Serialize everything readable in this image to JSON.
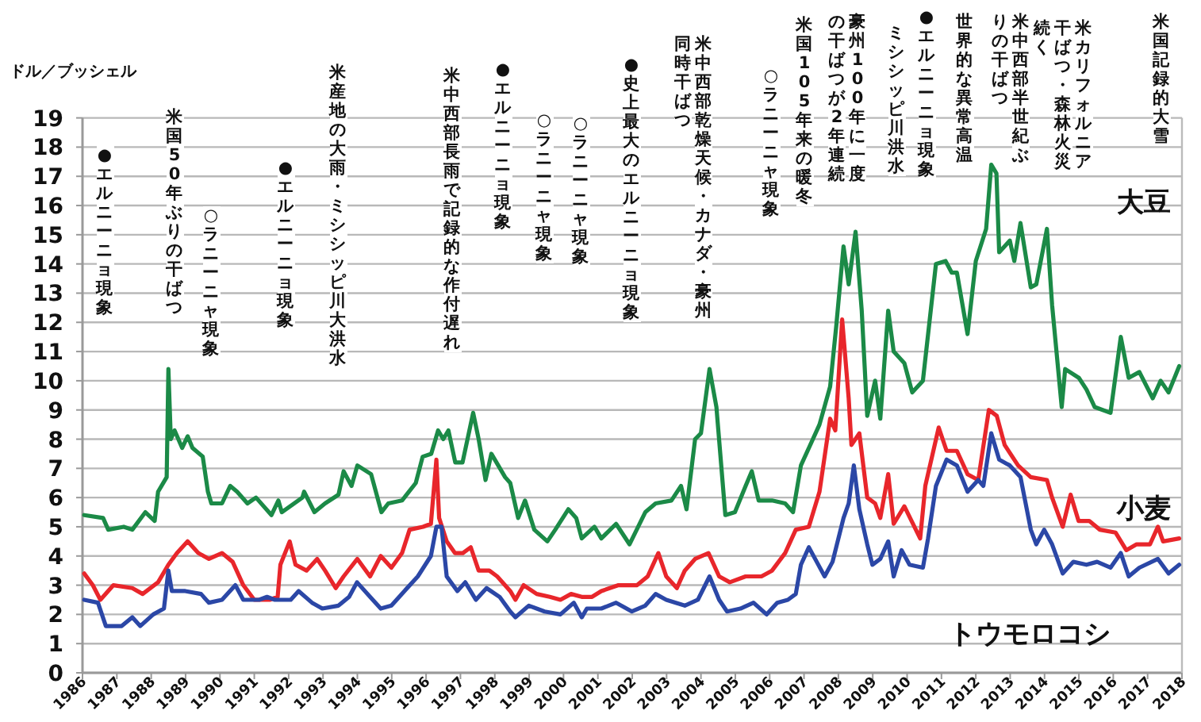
{
  "chart_data": {
    "type": "line",
    "ylabel": "ドル／ブッシェル",
    "xlim": [
      1986,
      2018
    ],
    "ylim": [
      0,
      19
    ],
    "xticks": [
      1986,
      1987,
      1988,
      1989,
      1990,
      1991,
      1992,
      1993,
      1994,
      1995,
      1996,
      1997,
      1998,
      1999,
      2000,
      2001,
      2002,
      2003,
      2004,
      2005,
      2006,
      2007,
      2008,
      2009,
      2010,
      2011,
      2012,
      2013,
      2014,
      2015,
      2016,
      2017,
      2018
    ],
    "yticks": [
      0,
      1,
      2,
      3,
      4,
      5,
      6,
      7,
      8,
      9,
      10,
      11,
      12,
      13,
      14,
      15,
      16,
      17,
      18,
      19
    ],
    "grid": "y",
    "series": [
      {
        "name": "大豆",
        "color": "#1b8a47",
        "x": [
          1986.05,
          1986.6,
          1986.75,
          1987.2,
          1987.45,
          1987.83,
          1988.1,
          1988.2,
          1988.45,
          1988.5,
          1988.57,
          1988.68,
          1988.9,
          1989.06,
          1989.2,
          1989.5,
          1989.65,
          1989.75,
          1990.06,
          1990.3,
          1990.5,
          1990.8,
          1991.05,
          1991.5,
          1991.7,
          1991.8,
          1992.4,
          1992.45,
          1992.75,
          1993.06,
          1993.45,
          1993.6,
          1993.83,
          1994.0,
          1994.4,
          1994.7,
          1994.9,
          1995.3,
          1995.7,
          1995.9,
          1996.15,
          1996.35,
          1996.5,
          1996.65,
          1996.85,
          1997.06,
          1997.37,
          1997.53,
          1997.73,
          1997.9,
          1998.3,
          1998.45,
          1998.68,
          1998.88,
          1999.15,
          1999.53,
          1999.76,
          2000.14,
          2000.37,
          2000.53,
          2000.9,
          2001.1,
          2001.53,
          2001.92,
          2002.38,
          2002.68,
          2003.14,
          2003.42,
          2003.58,
          2003.83,
          2004.0,
          2004.25,
          2004.45,
          2004.71,
          2004.99,
          2005.3,
          2005.48,
          2005.68,
          2006.07,
          2006.45,
          2006.68,
          2006.91,
          2007.45,
          2007.76,
          2007.94,
          2008.15,
          2008.3,
          2008.5,
          2008.68,
          2008.84,
          2009.07,
          2009.22,
          2009.45,
          2009.61,
          2009.92,
          2010.15,
          2010.46,
          2010.84,
          2011.12,
          2011.3,
          2011.45,
          2011.76,
          2012.0,
          2012.3,
          2012.45,
          2012.6,
          2012.68,
          2012.99,
          2013.12,
          2013.3,
          2013.6,
          2013.76,
          2014.07,
          2014.22,
          2014.5,
          2014.6,
          2015.0,
          2015.22,
          2015.46,
          2015.92,
          2016.22,
          2016.45,
          2016.76,
          2017.15,
          2017.38,
          2017.61,
          2017.92
        ],
        "values": [
          5.4,
          5.3,
          4.9,
          5.0,
          4.9,
          5.5,
          5.2,
          6.2,
          6.7,
          10.4,
          8.0,
          8.3,
          7.7,
          8.1,
          7.7,
          7.4,
          6.2,
          5.8,
          5.8,
          6.4,
          6.2,
          5.8,
          6.0,
          5.4,
          5.9,
          5.5,
          6.0,
          6.2,
          5.5,
          5.8,
          6.1,
          6.9,
          6.4,
          7.1,
          6.8,
          5.5,
          5.8,
          5.9,
          6.5,
          7.4,
          7.5,
          8.3,
          8.0,
          8.3,
          7.2,
          7.2,
          8.9,
          8.0,
          6.6,
          7.5,
          6.7,
          6.5,
          5.3,
          5.9,
          4.9,
          4.5,
          4.9,
          5.6,
          5.3,
          4.6,
          5.0,
          4.6,
          5.1,
          4.4,
          5.5,
          5.8,
          5.9,
          6.4,
          5.6,
          8.0,
          8.2,
          10.4,
          9.1,
          5.4,
          5.5,
          6.4,
          6.9,
          5.9,
          5.9,
          5.8,
          5.5,
          7.1,
          8.5,
          9.8,
          11.9,
          14.6,
          13.3,
          15.1,
          12.4,
          8.8,
          10.0,
          8.7,
          12.4,
          11.0,
          10.6,
          9.6,
          10.0,
          14.0,
          14.1,
          13.7,
          13.7,
          11.6,
          14.1,
          15.2,
          17.4,
          17.1,
          14.4,
          14.8,
          14.1,
          15.4,
          13.2,
          13.3,
          15.2,
          12.6,
          9.1,
          10.4,
          10.1,
          9.7,
          9.1,
          8.9,
          11.5,
          10.1,
          10.3,
          9.4,
          10.0,
          9.6,
          10.5
        ]
      },
      {
        "name": "小麦",
        "color": "#e8262b",
        "x": [
          1986.05,
          1986.3,
          1986.52,
          1986.9,
          1987.45,
          1987.75,
          1988.2,
          1988.5,
          1988.75,
          1989.06,
          1989.37,
          1989.68,
          1990.06,
          1990.37,
          1990.68,
          1991.0,
          1991.45,
          1991.68,
          1991.76,
          1992.03,
          1992.2,
          1992.52,
          1992.83,
          1993.06,
          1993.37,
          1993.6,
          1994.0,
          1994.37,
          1994.68,
          1994.99,
          1995.3,
          1995.52,
          1995.91,
          1996.14,
          1996.3,
          1996.38,
          1996.6,
          1996.84,
          1997.07,
          1997.3,
          1997.53,
          1997.84,
          1998.07,
          1998.45,
          1998.6,
          1998.84,
          1999.22,
          1999.6,
          1999.91,
          2000.22,
          2000.53,
          2000.83,
          2001.1,
          2001.6,
          2002.14,
          2002.45,
          2002.76,
          2002.99,
          2003.3,
          2003.53,
          2003.83,
          2004.22,
          2004.53,
          2004.84,
          2005.3,
          2005.76,
          2006.07,
          2006.45,
          2006.76,
          2007.14,
          2007.45,
          2007.76,
          2007.91,
          2008.11,
          2008.3,
          2008.38,
          2008.61,
          2008.84,
          2009.07,
          2009.22,
          2009.45,
          2009.61,
          2009.92,
          2010.38,
          2010.53,
          2010.92,
          2011.15,
          2011.45,
          2011.76,
          2012.07,
          2012.38,
          2012.61,
          2012.84,
          2013.23,
          2013.6,
          2014.07,
          2014.22,
          2014.53,
          2014.76,
          2014.99,
          2015.3,
          2015.61,
          2016.07,
          2016.38,
          2016.68,
          2017.07,
          2017.3,
          2017.45,
          2017.92
        ],
        "values": [
          3.4,
          3.0,
          2.5,
          3.0,
          2.9,
          2.7,
          3.1,
          3.7,
          4.1,
          4.5,
          4.1,
          3.9,
          4.1,
          3.8,
          3.0,
          2.5,
          2.5,
          2.6,
          3.7,
          4.5,
          3.7,
          3.5,
          3.9,
          3.5,
          2.9,
          3.3,
          3.9,
          3.3,
          4.0,
          3.6,
          4.1,
          4.9,
          5.0,
          5.1,
          7.3,
          5.3,
          4.5,
          4.1,
          4.1,
          4.3,
          3.5,
          3.5,
          3.3,
          2.8,
          2.5,
          3.0,
          2.7,
          2.6,
          2.5,
          2.7,
          2.6,
          2.6,
          2.8,
          3.0,
          3.0,
          3.3,
          4.1,
          3.3,
          2.9,
          3.5,
          3.9,
          4.1,
          3.3,
          3.1,
          3.3,
          3.3,
          3.5,
          4.1,
          4.9,
          5.0,
          6.2,
          8.7,
          8.3,
          12.1,
          9.4,
          7.8,
          8.2,
          6.0,
          5.8,
          5.3,
          6.8,
          5.1,
          5.7,
          4.6,
          6.4,
          8.4,
          7.6,
          7.6,
          6.8,
          6.6,
          9.0,
          8.8,
          7.8,
          7.1,
          6.7,
          6.6,
          6.0,
          5.0,
          6.1,
          5.2,
          5.2,
          4.9,
          4.8,
          4.2,
          4.4,
          4.4,
          5.0,
          4.5,
          4.6
        ]
      },
      {
        "name": "トウモロコシ",
        "color": "#2b47a6",
        "x": [
          1986.05,
          1986.45,
          1986.68,
          1987.14,
          1987.45,
          1987.68,
          1988.06,
          1988.37,
          1988.5,
          1988.6,
          1988.99,
          1989.45,
          1989.68,
          1990.06,
          1990.45,
          1990.68,
          1991.14,
          1991.37,
          1991.6,
          1992.06,
          1992.29,
          1992.68,
          1992.98,
          1993.45,
          1993.76,
          1993.99,
          1994.37,
          1994.68,
          1994.99,
          1995.37,
          1995.76,
          1996.14,
          1996.3,
          1996.45,
          1996.6,
          1996.91,
          1997.14,
          1997.45,
          1997.76,
          1998.14,
          1998.45,
          1998.6,
          1998.99,
          1999.45,
          1999.91,
          2000.3,
          2000.53,
          2000.68,
          2001.1,
          2001.53,
          2001.99,
          2002.38,
          2002.68,
          2002.99,
          2003.53,
          2003.91,
          2004.25,
          2004.53,
          2004.76,
          2005.15,
          2005.53,
          2005.91,
          2006.22,
          2006.53,
          2006.76,
          2006.91,
          2007.14,
          2007.37,
          2007.6,
          2007.83,
          2008.15,
          2008.3,
          2008.45,
          2008.61,
          2008.84,
          2008.99,
          2009.22,
          2009.45,
          2009.61,
          2009.84,
          2010.07,
          2010.46,
          2010.61,
          2010.84,
          2011.15,
          2011.45,
          2011.76,
          2012.07,
          2012.22,
          2012.45,
          2012.68,
          2012.99,
          2013.3,
          2013.6,
          2013.76,
          2013.99,
          2014.22,
          2014.53,
          2014.84,
          2015.22,
          2015.53,
          2015.92,
          2016.22,
          2016.45,
          2016.76,
          2017.3,
          2017.61,
          2017.92
        ],
        "values": [
          2.5,
          2.4,
          1.6,
          1.6,
          1.9,
          1.6,
          2.0,
          2.2,
          3.5,
          2.8,
          2.8,
          2.7,
          2.4,
          2.5,
          3.0,
          2.5,
          2.5,
          2.6,
          2.5,
          2.5,
          2.8,
          2.4,
          2.2,
          2.3,
          2.6,
          3.1,
          2.6,
          2.2,
          2.3,
          2.8,
          3.3,
          4.0,
          5.0,
          5.0,
          3.3,
          2.8,
          3.1,
          2.5,
          2.9,
          2.6,
          2.1,
          1.9,
          2.3,
          2.1,
          2.0,
          2.4,
          1.9,
          2.2,
          2.2,
          2.4,
          2.1,
          2.3,
          2.7,
          2.5,
          2.3,
          2.5,
          3.3,
          2.5,
          2.1,
          2.2,
          2.4,
          2.0,
          2.4,
          2.5,
          2.7,
          3.7,
          4.3,
          3.8,
          3.3,
          3.8,
          5.3,
          5.8,
          7.1,
          5.6,
          4.4,
          3.7,
          3.9,
          4.5,
          3.3,
          4.2,
          3.7,
          3.6,
          4.6,
          6.4,
          7.3,
          7.1,
          6.2,
          6.6,
          6.4,
          8.2,
          7.3,
          7.1,
          6.7,
          4.9,
          4.4,
          4.9,
          4.4,
          3.4,
          3.8,
          3.7,
          3.8,
          3.6,
          4.1,
          3.3,
          3.6,
          3.9,
          3.4,
          3.7
        ]
      }
    ],
    "annotations": [
      "●エルニーニョ現象",
      "米国50年ぶりの干ばつ",
      "○ラニーニャ現象",
      "●エルニーニョ現象",
      "米産地の大雨・ミシシッピ川大洪水",
      "米中西部長雨で記録的な作付遅れ",
      "●エルニーニョ現象",
      "○ラニーニャ現象",
      "○ラニーニャ現象",
      "●史上最大のエルニーニョ現象",
      "米中西部乾燥天候・カナダ・豪州同時干ばつ",
      "○ラニーニャ現象",
      "豪州100年に一度の干ばつが2年連続",
      "米国105年来の暖冬",
      "ミシシッピ川洪水",
      "●エルニーニョ現象",
      "世界的な異常高温",
      "米中西部半世紀ぶりの干ばつ",
      "米カリフォルニア干ばつ・森林火災続く",
      "米国記録的大雪"
    ]
  }
}
